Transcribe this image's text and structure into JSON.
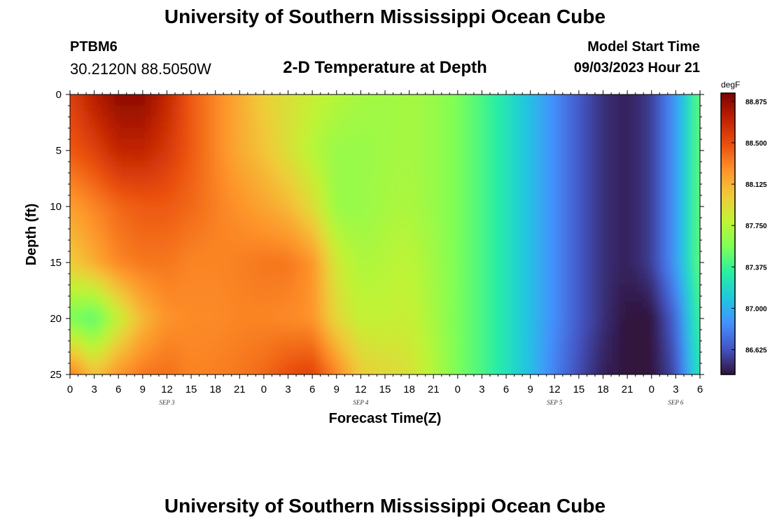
{
  "header": {
    "title": "University of Southern Mississippi Ocean Cube",
    "station_id": "PTBM6",
    "coordinates": "30.2120N  88.5050W",
    "subtitle": "2-D Temperature at Depth",
    "model_start_label": "Model Start Time",
    "model_start_value": "09/03/2023 Hour 21"
  },
  "footer": {
    "title": "University of Southern Mississippi Ocean Cube"
  },
  "chart_data": {
    "type": "heatmap",
    "title": "2-D Temperature at Depth",
    "xlabel": "Forecast Time(Z)",
    "ylabel": "Depth (ft)",
    "x_tick_labels": [
      "0",
      "3",
      "6",
      "9",
      "12",
      "15",
      "18",
      "21",
      "0",
      "3",
      "6",
      "9",
      "12",
      "15",
      "18",
      "21",
      "0",
      "3",
      "6",
      "9",
      "12",
      "15",
      "18",
      "21",
      "0",
      "3",
      "6"
    ],
    "x_date_labels": [
      {
        "label": "SEP 3",
        "hour": 12
      },
      {
        "label": "SEP 4",
        "hour": 36
      },
      {
        "label": "SEP 5",
        "hour": 60
      },
      {
        "label": "SEP 6",
        "hour": 75
      }
    ],
    "xlim_hours": [
      0,
      78
    ],
    "y_ticks": [
      0,
      5,
      10,
      15,
      20,
      25
    ],
    "ylim": [
      0,
      25
    ],
    "y_inverted": true,
    "colorbar": {
      "unit": "degF",
      "min": 86.4,
      "max": 88.95,
      "tick_values": [
        88.875,
        88.5,
        88.125,
        87.75,
        87.375,
        87.0,
        86.625
      ],
      "tick_labels": [
        "88.875",
        "88.500",
        "88.125",
        "87.750",
        "87.375",
        "87.000",
        "86.625"
      ],
      "colors": [
        "#30123b",
        "#4454c4",
        "#4490fe",
        "#1fc8de",
        "#29efa2",
        "#7dff56",
        "#c1f334",
        "#f1ca3a",
        "#fe922a",
        "#ea4f0d",
        "#be2102",
        "#7a0403"
      ]
    },
    "grid_hours": [
      0,
      3,
      6,
      9,
      12,
      15,
      18,
      21,
      24,
      27,
      30,
      33,
      36,
      39,
      42,
      45,
      48,
      51,
      54,
      57,
      60,
      63,
      66,
      69,
      72,
      75,
      78
    ],
    "grid_depths": [
      0,
      5,
      10,
      15,
      20,
      25
    ],
    "values_degF": [
      [
        88.55,
        88.75,
        88.88,
        88.88,
        88.7,
        88.45,
        88.3,
        88.15,
        88.0,
        87.9,
        87.82,
        87.75,
        87.7,
        87.68,
        87.7,
        87.65,
        87.55,
        87.42,
        87.25,
        87.05,
        86.85,
        86.65,
        86.5,
        86.45,
        86.55,
        86.9,
        87.5
      ],
      [
        88.45,
        88.55,
        88.7,
        88.7,
        88.6,
        88.45,
        88.3,
        88.15,
        88.05,
        87.9,
        87.75,
        87.65,
        87.65,
        87.68,
        87.7,
        87.65,
        87.55,
        87.42,
        87.25,
        87.05,
        86.85,
        86.65,
        86.5,
        86.45,
        86.55,
        86.9,
        87.5
      ],
      [
        88.2,
        88.3,
        88.4,
        88.45,
        88.45,
        88.4,
        88.32,
        88.25,
        88.18,
        88.1,
        87.92,
        87.65,
        87.65,
        87.7,
        87.72,
        87.65,
        87.55,
        87.42,
        87.25,
        87.05,
        86.85,
        86.65,
        86.5,
        86.45,
        86.55,
        86.9,
        87.5
      ],
      [
        88.0,
        88.15,
        88.3,
        88.35,
        88.35,
        88.3,
        88.3,
        88.32,
        88.35,
        88.35,
        88.25,
        87.85,
        87.72,
        87.75,
        87.78,
        87.68,
        87.55,
        87.42,
        87.25,
        87.05,
        86.85,
        86.65,
        86.5,
        86.45,
        86.55,
        86.9,
        87.5
      ],
      [
        87.55,
        87.45,
        87.8,
        88.1,
        88.25,
        88.28,
        88.28,
        88.3,
        88.3,
        88.28,
        88.25,
        87.95,
        87.8,
        87.8,
        87.82,
        87.7,
        87.55,
        87.42,
        87.25,
        87.05,
        86.85,
        86.65,
        86.5,
        86.4,
        86.4,
        86.7,
        87.4
      ],
      [
        88.35,
        88.05,
        88.25,
        88.35,
        88.38,
        88.3,
        88.32,
        88.35,
        88.4,
        88.5,
        88.55,
        88.3,
        88.0,
        87.95,
        87.9,
        87.75,
        87.55,
        87.42,
        87.25,
        87.05,
        86.8,
        86.6,
        86.45,
        86.4,
        86.4,
        86.6,
        87.3
      ]
    ]
  }
}
